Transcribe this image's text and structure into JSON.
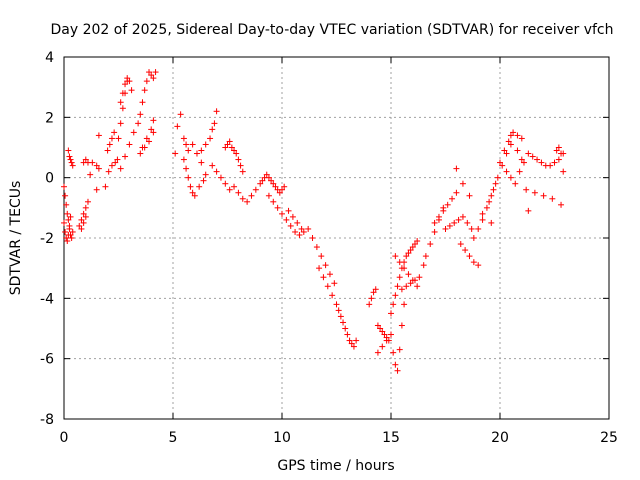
{
  "chart_data": {
    "type": "scatter",
    "title": "Day 202 of 2025, Sidereal Day-to-day VTEC variation (SDTVAR) for receiver vfch",
    "xlabel": "GPS time / hours",
    "ylabel": "SDTVAR / TECUs",
    "xlim": [
      0,
      25
    ],
    "ylim": [
      -8,
      4
    ],
    "x_ticks": [
      0,
      5,
      10,
      15,
      20,
      25
    ],
    "y_ticks": [
      -8,
      -6,
      -4,
      -2,
      0,
      2,
      4
    ],
    "grid": true,
    "marker": "+",
    "color": "#ff0000",
    "series": [
      {
        "name": "SDTVAR",
        "x": [
          0.0,
          0.05,
          0.1,
          0.15,
          0.2,
          0.25,
          0.3,
          0.35,
          0.4,
          0.0,
          0.05,
          0.1,
          0.15,
          0.2,
          0.25,
          0.3,
          0.2,
          0.25,
          0.3,
          0.35,
          0.4,
          0.7,
          0.8,
          0.9,
          1.0,
          1.1,
          0.8,
          0.9,
          1.0,
          0.9,
          1.0,
          1.1,
          1.2,
          1.5,
          1.6,
          1.3,
          1.6,
          1.5,
          1.9,
          2.0,
          2.1,
          2.2,
          2.3,
          2.05,
          2.2,
          2.35,
          2.45,
          2.5,
          2.6,
          2.7,
          2.8,
          2.9,
          2.6,
          2.7,
          2.8,
          2.9,
          3.0,
          3.1,
          2.6,
          2.8,
          3.0,
          3.2,
          3.4,
          3.5,
          3.6,
          3.7,
          3.8,
          3.9,
          4.0,
          4.1,
          4.2,
          3.6,
          3.8,
          4.0,
          4.1,
          3.5,
          3.7,
          3.9,
          4.1,
          5.1,
          5.2,
          5.35,
          5.5,
          5.6,
          5.7,
          5.8,
          5.9,
          5.5,
          5.6,
          5.7,
          5.9,
          6.1,
          6.3,
          6.0,
          6.2,
          6.4,
          6.5,
          6.3,
          6.5,
          6.7,
          6.8,
          6.9,
          7.0,
          6.8,
          7.0,
          7.2,
          7.4,
          7.6,
          7.4,
          7.5,
          7.6,
          7.7,
          7.8,
          7.9,
          8.0,
          8.1,
          8.2,
          7.8,
          8.0,
          8.2,
          8.4,
          8.6,
          8.8,
          9.0,
          9.1,
          9.2,
          9.3,
          9.4,
          9.5,
          9.6,
          9.7,
          9.8,
          9.9,
          10.0,
          10.1,
          9.4,
          9.6,
          9.8,
          10.0,
          10.2,
          10.4,
          10.6,
          10.8,
          11.0,
          11.2,
          10.3,
          10.5,
          10.7,
          10.9,
          11.4,
          11.6,
          11.8,
          12.0,
          12.2,
          12.4,
          11.7,
          11.9,
          12.1,
          12.3,
          12.5,
          12.6,
          12.7,
          12.8,
          12.9,
          13.0,
          13.1,
          13.2,
          13.3,
          13.4,
          14.0,
          14.1,
          14.2,
          14.3,
          14.4,
          14.5,
          14.6,
          14.7,
          14.8,
          14.9,
          14.4,
          14.6,
          14.8,
          15.0,
          15.1,
          15.2,
          15.3,
          15.4,
          15.5,
          15.6,
          15.0,
          15.1,
          15.2,
          15.3,
          15.4,
          15.5,
          15.6,
          15.7,
          15.8,
          15.9,
          16.0,
          16.1,
          16.2,
          15.2,
          15.4,
          15.6,
          15.8,
          16.0,
          16.2,
          15.5,
          15.7,
          15.9,
          16.1,
          16.3,
          16.5,
          16.6,
          16.8,
          17.0,
          17.2,
          17.4,
          17.0,
          17.2,
          17.4,
          17.6,
          17.8,
          18.0,
          17.5,
          17.7,
          17.9,
          18.1,
          18.3,
          18.5,
          18.7,
          18.2,
          18.4,
          18.6,
          18.8,
          19.0,
          18.8,
          19.0,
          19.2,
          19.4,
          19.6,
          19.8,
          19.5,
          19.7,
          19.9,
          20.1,
          20.3,
          20.5,
          20.0,
          20.2,
          20.4,
          20.6,
          20.8,
          21.0,
          20.3,
          20.5,
          20.7,
          20.9,
          21.1,
          21.3,
          21.5,
          21.7,
          21.9,
          22.1,
          22.3,
          22.5,
          22.7,
          22.9,
          21.2,
          21.6,
          22.0,
          22.4,
          22.8,
          22.6,
          22.7,
          22.8,
          22.9,
          18.0,
          18.3,
          18.6,
          20.5,
          20.8,
          21.0,
          19.2,
          19.6,
          21.3
        ],
        "y": [
          -0.3,
          -0.6,
          -0.9,
          -1.2,
          -1.4,
          -1.7,
          -1.9,
          -2.0,
          -1.8,
          -1.5,
          -1.8,
          -2.0,
          -2.1,
          -1.9,
          -1.6,
          -1.3,
          0.9,
          0.7,
          0.6,
          0.5,
          0.4,
          -1.6,
          -1.4,
          -1.2,
          -1.0,
          -0.8,
          -1.7,
          -1.5,
          -1.3,
          0.5,
          0.6,
          0.5,
          0.1,
          0.4,
          0.3,
          0.5,
          1.4,
          -0.4,
          -0.3,
          0.9,
          1.1,
          1.3,
          1.5,
          0.2,
          0.4,
          0.5,
          0.6,
          1.3,
          1.8,
          2.3,
          2.8,
          3.2,
          2.5,
          2.8,
          3.1,
          3.3,
          3.2,
          2.9,
          0.3,
          0.7,
          1.1,
          1.5,
          1.8,
          2.1,
          2.5,
          2.9,
          3.2,
          3.5,
          3.4,
          3.3,
          3.5,
          1.0,
          1.3,
          1.6,
          1.9,
          0.8,
          1.0,
          1.2,
          1.5,
          0.8,
          1.7,
          2.1,
          0.6,
          0.3,
          0.0,
          -0.3,
          -0.5,
          1.3,
          1.1,
          0.9,
          1.1,
          0.8,
          0.5,
          -0.6,
          -0.3,
          -0.1,
          0.1,
          0.9,
          1.1,
          1.3,
          1.6,
          1.8,
          2.2,
          0.4,
          0.2,
          0.0,
          -0.2,
          -0.4,
          1.0,
          1.1,
          1.2,
          1.0,
          0.9,
          0.8,
          0.6,
          0.4,
          0.2,
          -0.3,
          -0.5,
          -0.7,
          -0.8,
          -0.6,
          -0.4,
          -0.2,
          -0.1,
          0.0,
          0.1,
          0.0,
          -0.1,
          -0.2,
          -0.3,
          -0.4,
          -0.5,
          -0.4,
          -0.3,
          -0.6,
          -0.8,
          -1.0,
          -1.2,
          -1.4,
          -1.6,
          -1.8,
          -1.9,
          -1.8,
          -1.7,
          -1.1,
          -1.3,
          -1.5,
          -1.7,
          -2.0,
          -2.3,
          -2.6,
          -2.9,
          -3.2,
          -3.5,
          -3.0,
          -3.3,
          -3.6,
          -3.9,
          -4.2,
          -4.4,
          -4.6,
          -4.8,
          -5.0,
          -5.2,
          -5.4,
          -5.5,
          -5.6,
          -5.4,
          -4.2,
          -4.0,
          -3.8,
          -3.7,
          -4.9,
          -5.0,
          -5.1,
          -5.2,
          -5.3,
          -5.4,
          -5.8,
          -5.6,
          -5.4,
          -5.2,
          -5.8,
          -6.2,
          -6.4,
          -5.7,
          -4.9,
          -4.2,
          -4.5,
          -4.2,
          -3.9,
          -3.6,
          -3.3,
          -3.0,
          -2.8,
          -2.6,
          -2.5,
          -2.4,
          -2.3,
          -2.2,
          -2.1,
          -2.6,
          -2.8,
          -3.0,
          -3.2,
          -3.4,
          -3.6,
          -3.7,
          -3.6,
          -3.5,
          -3.4,
          -3.3,
          -2.9,
          -2.6,
          -2.2,
          -1.8,
          -1.4,
          -1.0,
          -1.5,
          -1.3,
          -1.1,
          -0.9,
          -0.7,
          -0.5,
          -1.7,
          -1.6,
          -1.5,
          -1.4,
          -1.3,
          -1.5,
          -1.7,
          -2.2,
          -2.4,
          -2.6,
          -2.8,
          -2.9,
          -2.0,
          -1.7,
          -1.4,
          -1.0,
          -0.6,
          -0.2,
          -0.8,
          -0.4,
          0.0,
          0.4,
          0.8,
          1.1,
          0.5,
          0.9,
          1.2,
          1.5,
          1.4,
          1.3,
          0.2,
          0.0,
          -0.2,
          0.2,
          0.5,
          0.8,
          0.7,
          0.6,
          0.5,
          0.4,
          0.4,
          0.5,
          0.6,
          0.8,
          -0.4,
          -0.5,
          -0.6,
          -0.7,
          -0.9,
          0.9,
          1.0,
          0.8,
          0.2,
          0.3,
          -0.2,
          -0.6,
          1.4,
          0.9,
          0.6,
          -1.2,
          -1.5,
          -1.1
        ]
      }
    ]
  }
}
